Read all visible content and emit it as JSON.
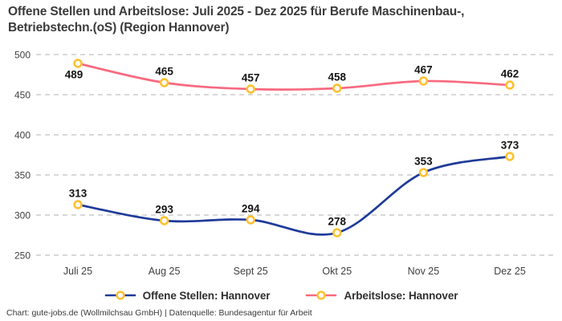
{
  "title": {
    "lines": [
      "Offene Stellen und Arbeitslose: Juli 2025 - Dez 2025 für Berufe Maschinenbau-,",
      "Betriebstechn.(oS) (Region Hannover)"
    ]
  },
  "legend": {
    "items": [
      {
        "label": "Offene Stellen: Hannover",
        "color": "#1f3b99"
      },
      {
        "label": "Arbeitslose: Hannover",
        "color": "#f8697f"
      }
    ]
  },
  "footer": {
    "text": "Chart: gute-jobs.de (Wollmilchsau GmbH) | Datenquelle: Bundesagentur für Arbeit"
  },
  "chart_data": {
    "type": "line",
    "title": "Offene Stellen und Arbeitslose: Juli 2025 - Dez 2025 für Berufe Maschinenbau-, Betriebstechn.(oS) (Region Hannover)",
    "categories": [
      "Juli 25",
      "Aug 25",
      "Sept 25",
      "Okt 25",
      "Nov 25",
      "Dez 25"
    ],
    "series": [
      {
        "name": "Offene Stellen: Hannover",
        "color": "#1f3b99",
        "values": [
          313,
          293,
          294,
          278,
          353,
          373
        ],
        "label_positions": [
          "above",
          "above",
          "above",
          "above",
          "above",
          "above"
        ]
      },
      {
        "name": "Arbeitslose: Hannover",
        "color": "#f8697f",
        "values": [
          489,
          465,
          457,
          458,
          467,
          462
        ],
        "label_positions": [
          "below",
          "above",
          "above",
          "above",
          "above",
          "above"
        ]
      }
    ],
    "marker": {
      "fill": "#ffffff",
      "stroke": "#fdc130"
    },
    "yticks": [
      250,
      300,
      350,
      400,
      450,
      500
    ],
    "ylim": [
      250,
      500
    ],
    "grid": {
      "horizontal": true,
      "style": "dashed",
      "color": "#cccccc"
    },
    "legend_position": "bottom",
    "line_smoothing": true,
    "xlabel": "",
    "ylabel": ""
  }
}
